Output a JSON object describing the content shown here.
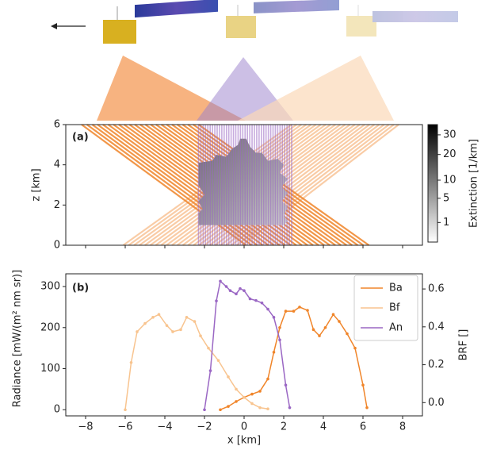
{
  "chart_data": [
    {
      "type": "image",
      "title": "(a)",
      "ylabel": "z [km]",
      "xlim": [
        -9,
        9
      ],
      "xticks": [
        -8,
        -6,
        -4,
        -2,
        0,
        2,
        4,
        6,
        8
      ],
      "ylim": [
        0,
        6
      ],
      "yticks": [
        0,
        2,
        4,
        6
      ],
      "colorbar": {
        "label": "Extinction [1/km]",
        "scale": "sqrt",
        "lim": [
          0,
          36
        ],
        "ticks": [
          1,
          5,
          10,
          20,
          30
        ]
      }
    },
    {
      "type": "line",
      "title": "(b)",
      "xlabel": "x [km]",
      "ylabel": "Radiance [mW/(m² nm sr)]",
      "y2label": "BRF []",
      "xlim": [
        -9,
        9
      ],
      "xticks": [
        {
          "value": -8,
          "label": "−8"
        },
        {
          "value": -6,
          "label": "−6"
        },
        {
          "value": -4,
          "label": "−4"
        },
        {
          "value": -2,
          "label": "−2"
        },
        0,
        2,
        4,
        6,
        8
      ],
      "ylim": [
        -15,
        331
      ],
      "yticks": [
        0,
        100,
        200,
        300
      ],
      "y2lim": [
        -0.07,
        0.68
      ],
      "y2ticks": [
        {
          "value": 0,
          "label": "0.0"
        },
        0.2,
        0.4,
        0.6
      ],
      "legend": "upper right",
      "series": [
        {
          "name": "Ba",
          "color": "#f0852a",
          "x": [
            -1.2,
            -0.8,
            -0.4,
            0,
            0.4,
            0.8,
            1.2,
            1.5,
            1.8,
            2.1,
            2.5,
            2.8,
            3.2,
            3.5,
            3.8,
            4.1,
            4.5,
            4.8,
            5.2,
            5.6,
            6.0,
            6.2
          ],
          "values": [
            0,
            8,
            20,
            30,
            38,
            45,
            75,
            140,
            200,
            240,
            240,
            250,
            242,
            195,
            180,
            200,
            232,
            215,
            185,
            150,
            60,
            5
          ]
        },
        {
          "name": "Bf",
          "color": "#f8c48f",
          "x": [
            -6.0,
            -5.7,
            -5.4,
            -5.0,
            -4.6,
            -4.3,
            -3.9,
            -3.6,
            -3.2,
            -2.9,
            -2.5,
            -2.2,
            -1.8,
            -1.3,
            -0.8,
            -0.4,
            0,
            0.4,
            0.8,
            1.2
          ],
          "values": [
            0,
            115,
            190,
            210,
            225,
            232,
            205,
            190,
            195,
            225,
            215,
            180,
            150,
            120,
            80,
            50,
            30,
            15,
            5,
            2
          ]
        },
        {
          "name": "An",
          "color": "#9a67c4",
          "x": [
            -2.0,
            -1.7,
            -1.4,
            -1.2,
            -0.9,
            -0.7,
            -0.4,
            -0.2,
            0,
            0.3,
            0.6,
            0.9,
            1.2,
            1.5,
            1.8,
            2.1,
            2.3
          ],
          "values": [
            0,
            95,
            265,
            313,
            300,
            290,
            282,
            295,
            290,
            270,
            266,
            260,
            245,
            225,
            170,
            60,
            5
          ]
        }
      ]
    }
  ]
}
